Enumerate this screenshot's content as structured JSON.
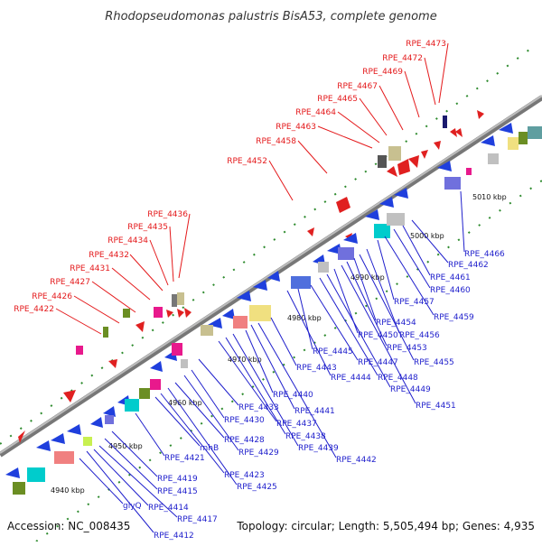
{
  "title": "Rhodopseudomonas palustris BisA53, complete genome",
  "footer": {
    "accession": "Accession: NC_008435",
    "summary": "Topology: circular; Length: 5,505,494 bp; Genes: 4,935"
  },
  "colors": {
    "backbone": "#8c8c8c",
    "top_label": "#e41a1c",
    "bottom_label": "#1f1fcc",
    "tick_dot": "#2e8b2e"
  },
  "kbp_ticks": [
    "4940 kbp",
    "4950 kbp",
    "4960 kbp",
    "4970 kbp",
    "4980 kbp",
    "4990 kbp",
    "5000 kbp",
    "5010 kbp"
  ],
  "top_labels": [
    "RPE_4422",
    "RPE_4426",
    "RPE_4427",
    "RPE_4431",
    "RPE_4432",
    "RPE_4434",
    "RPE_4435",
    "RPE_4436",
    "RPE_4452",
    "RPE_4458",
    "RPE_4463",
    "RPE_4464",
    "RPE_4465",
    "RPE_4467",
    "RPE_4469",
    "RPE_4472",
    "RPE_4473"
  ],
  "bottom_labels": [
    "RPE_4412",
    "glyQ",
    "RPE_4417",
    "RPE_4414",
    "RPE_4415",
    "RPE_4419",
    "RPE_4421",
    "rnhB",
    "RPE_4423",
    "RPE_4425",
    "RPE_4428",
    "RPE_4429",
    "RPE_4430",
    "RPE_4433",
    "RPE_4437",
    "RPE_4438",
    "RPE_4439",
    "RPE_4440",
    "RPE_4441",
    "RPE_4442",
    "RPE_4443",
    "RPE_4444",
    "RPE_4445",
    "RPE_4447",
    "RPE_4448",
    "RPE_4449",
    "RPE_4450",
    "RPE_4451",
    "RPE_4453",
    "RPE_4454",
    "RPE_4455",
    "RPE_4456",
    "RPE_4457",
    "RPE_4459",
    "RPE_4460",
    "RPE_4461",
    "RPE_4462",
    "RPE_4466"
  ]
}
